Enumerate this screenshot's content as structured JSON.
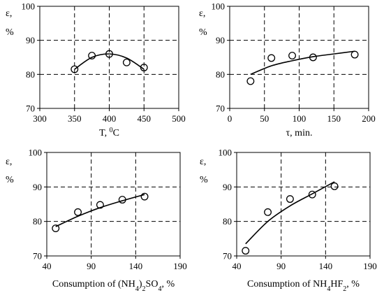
{
  "chart_data": [
    {
      "type": "scatter",
      "ylabel_line1": "ε,",
      "ylabel_line2": "%",
      "xlabel_parts": [
        {
          "t": "T, "
        },
        {
          "t": "0",
          "sup": true
        },
        {
          "t": "C"
        }
      ],
      "xlim": [
        300,
        500
      ],
      "xticks": [
        300,
        350,
        400,
        450,
        500
      ],
      "ylim": [
        70,
        100
      ],
      "yticks": [
        70,
        80,
        90,
        100
      ],
      "points": [
        [
          350,
          81.5
        ],
        [
          375,
          85.5
        ],
        [
          400,
          86
        ],
        [
          425,
          83.5
        ],
        [
          450,
          82
        ]
      ],
      "trend": [
        [
          350,
          81.5
        ],
        [
          375,
          85
        ],
        [
          400,
          86
        ],
        [
          425,
          84.8
        ],
        [
          450,
          81.5
        ]
      ],
      "grid": true
    },
    {
      "type": "scatter",
      "ylabel_line1": "ε,",
      "ylabel_line2": "%",
      "xlabel_parts": [
        {
          "t": "τ, min."
        }
      ],
      "xlim": [
        0,
        200
      ],
      "xticks": [
        0,
        50,
        100,
        150,
        200
      ],
      "ylim": [
        70,
        100
      ],
      "yticks": [
        70,
        80,
        90,
        100
      ],
      "points": [
        [
          30,
          78
        ],
        [
          60,
          84.8
        ],
        [
          90,
          85.5
        ],
        [
          120,
          85
        ],
        [
          180,
          85.8
        ]
      ],
      "trend": [
        [
          30,
          80
        ],
        [
          60,
          82.5
        ],
        [
          90,
          84
        ],
        [
          120,
          85.2
        ],
        [
          150,
          86
        ],
        [
          180,
          86.8
        ]
      ],
      "grid": true
    },
    {
      "type": "scatter",
      "ylabel_line1": "ε,",
      "ylabel_line2": "%",
      "xlabel_parts": [
        {
          "t": "Consumption of (NH"
        },
        {
          "t": "4",
          "sub": true
        },
        {
          "t": ")"
        },
        {
          "t": "2",
          "sub": true
        },
        {
          "t": "SO"
        },
        {
          "t": "4",
          "sub": true
        },
        {
          "t": ", %"
        }
      ],
      "xlim": [
        40,
        190
      ],
      "xticks": [
        40,
        90,
        140,
        190
      ],
      "ylim": [
        70,
        100
      ],
      "yticks": [
        70,
        80,
        90,
        100
      ],
      "points": [
        [
          50,
          78
        ],
        [
          75,
          82.7
        ],
        [
          100,
          84.8
        ],
        [
          125,
          86.3
        ],
        [
          150,
          87.2
        ]
      ],
      "trend": [
        [
          50,
          78.5
        ],
        [
          75,
          81.5
        ],
        [
          100,
          84
        ],
        [
          125,
          86
        ],
        [
          150,
          87.8
        ]
      ],
      "grid": true
    },
    {
      "type": "scatter",
      "ylabel_line1": "ε,",
      "ylabel_line2": "%",
      "xlabel_parts": [
        {
          "t": "Consumption of NH"
        },
        {
          "t": "4",
          "sub": true
        },
        {
          "t": "HF"
        },
        {
          "t": "2",
          "sub": true
        },
        {
          "t": ", %"
        }
      ],
      "xlim": [
        40,
        190
      ],
      "xticks": [
        40,
        90,
        140,
        190
      ],
      "ylim": [
        70,
        100
      ],
      "yticks": [
        70,
        80,
        90,
        100
      ],
      "points": [
        [
          50,
          71.5
        ],
        [
          75,
          82.7
        ],
        [
          100,
          86.5
        ],
        [
          125,
          87.8
        ],
        [
          150,
          90.2
        ]
      ],
      "trend": [
        [
          50,
          73.5
        ],
        [
          75,
          80
        ],
        [
          100,
          84.5
        ],
        [
          125,
          88
        ],
        [
          150,
          91.5
        ]
      ],
      "grid": true
    }
  ]
}
